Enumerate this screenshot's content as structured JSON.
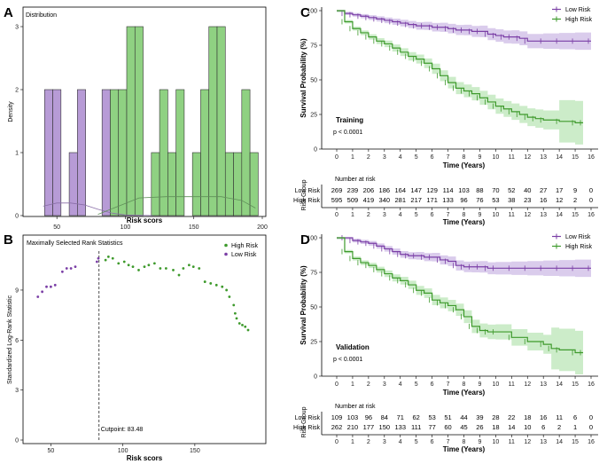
{
  "colors": {
    "low": "#7B3FA6",
    "high": "#3E9A2C",
    "low_fill": "#B79BD6",
    "high_fill": "#8FD182",
    "low_band": "rgba(150,110,200,0.35)",
    "high_band": "rgba(110,200,100,0.35)"
  },
  "panel_letters": {
    "a": "A",
    "b": "B",
    "c": "C",
    "d": "D"
  },
  "chart_data": [
    {
      "id": "A",
      "type": "bar",
      "title": "Distribution",
      "xlabel": "Risk scors",
      "ylabel": "Density",
      "xlim": [
        35,
        200
      ],
      "ylim": [
        0,
        3
      ],
      "xticks": [
        50,
        100,
        150,
        200
      ],
      "yticks": [
        0,
        1,
        2,
        3
      ],
      "bin_width": 6,
      "bars": [
        {
          "x0": 41,
          "v": 2,
          "g": "low"
        },
        {
          "x0": 47,
          "v": 2,
          "g": "low"
        },
        {
          "x0": 59,
          "v": 1,
          "g": "low"
        },
        {
          "x0": 65,
          "v": 2,
          "g": "low"
        },
        {
          "x0": 83,
          "v": 2,
          "g": "low"
        },
        {
          "x0": 89,
          "v": 2,
          "g": "high"
        },
        {
          "x0": 95,
          "v": 2,
          "g": "high"
        },
        {
          "x0": 101,
          "v": 3,
          "g": "high"
        },
        {
          "x0": 107,
          "v": 3,
          "g": "high"
        },
        {
          "x0": 119,
          "v": 1,
          "g": "high"
        },
        {
          "x0": 125,
          "v": 2,
          "g": "high"
        },
        {
          "x0": 131,
          "v": 1,
          "g": "high"
        },
        {
          "x0": 137,
          "v": 2,
          "g": "high"
        },
        {
          "x0": 149,
          "v": 1,
          "g": "high"
        },
        {
          "x0": 155,
          "v": 2,
          "g": "high"
        },
        {
          "x0": 161,
          "v": 3,
          "g": "high"
        },
        {
          "x0": 167,
          "v": 3,
          "g": "high"
        },
        {
          "x0": 173,
          "v": 1,
          "g": "high"
        },
        {
          "x0": 179,
          "v": 1,
          "g": "high"
        },
        {
          "x0": 185,
          "v": 2,
          "g": "high"
        },
        {
          "x0": 191,
          "v": 1,
          "g": "high"
        }
      ],
      "density_low": [
        [
          40,
          0.15
        ],
        [
          50,
          0.2
        ],
        [
          60,
          0.2
        ],
        [
          70,
          0.17
        ],
        [
          80,
          0.1
        ],
        [
          90,
          0.04
        ],
        [
          100,
          0.01
        ],
        [
          120,
          0.0
        ]
      ],
      "density_high": [
        [
          80,
          0.02
        ],
        [
          95,
          0.15
        ],
        [
          110,
          0.28
        ],
        [
          130,
          0.3
        ],
        [
          150,
          0.3
        ],
        [
          170,
          0.3
        ],
        [
          185,
          0.24
        ],
        [
          195,
          0.12
        ]
      ]
    },
    {
      "id": "B",
      "type": "scatter",
      "title": "Maximally Selected Rank Statistics",
      "xlabel": "Risk scors",
      "ylabel": "Standardized Log-Rank Statistic",
      "xlim": [
        35,
        195
      ],
      "ylim": [
        0,
        11.5
      ],
      "xticks": [
        50,
        100,
        150
      ],
      "yticks": [
        0,
        3,
        6,
        9
      ],
      "legend": [
        "High Risk",
        "Low Risk"
      ],
      "cutpoint": 83.48,
      "cutpoint_label": "Cutpoint: 83.48",
      "series": [
        {
          "name": "Low Risk",
          "points": [
            [
              41,
              8.6
            ],
            [
              44,
              8.9
            ],
            [
              47,
              9.2
            ],
            [
              50,
              9.2
            ],
            [
              53,
              9.3
            ],
            [
              58,
              10.1
            ],
            [
              61,
              10.3
            ],
            [
              64,
              10.3
            ],
            [
              67,
              10.4
            ],
            [
              82,
              10.7
            ],
            [
              83,
              10.9
            ]
          ]
        },
        {
          "name": "High Risk",
          "points": [
            [
              88,
              10.8
            ],
            [
              90,
              11.0
            ],
            [
              93,
              10.9
            ],
            [
              97,
              10.6
            ],
            [
              101,
              10.7
            ],
            [
              104,
              10.5
            ],
            [
              107,
              10.4
            ],
            [
              111,
              10.2
            ],
            [
              115,
              10.4
            ],
            [
              118,
              10.5
            ],
            [
              122,
              10.6
            ],
            [
              126,
              10.3
            ],
            [
              130,
              10.3
            ],
            [
              135,
              10.2
            ],
            [
              139,
              9.9
            ],
            [
              142,
              10.3
            ],
            [
              146,
              10.5
            ],
            [
              149,
              10.4
            ],
            [
              153,
              10.3
            ],
            [
              157,
              9.5
            ],
            [
              161,
              9.4
            ],
            [
              165,
              9.3
            ],
            [
              169,
              9.2
            ],
            [
              172,
              9.0
            ],
            [
              174,
              8.6
            ],
            [
              177,
              8.1
            ],
            [
              178,
              7.6
            ],
            [
              179,
              7.3
            ],
            [
              181,
              7.0
            ],
            [
              183,
              6.9
            ],
            [
              185,
              6.8
            ],
            [
              187,
              6.6
            ]
          ]
        }
      ]
    },
    {
      "id": "C",
      "type": "line",
      "xlabel": "Time (Years)",
      "ylabel": "Survival Probability (%)",
      "xlim": [
        0,
        16
      ],
      "ylim": [
        0,
        100
      ],
      "xticks": [
        0,
        1,
        2,
        3,
        4,
        5,
        6,
        7,
        8,
        9,
        10,
        11,
        12,
        13,
        14,
        15,
        16
      ],
      "yticks": [
        0,
        25,
        50,
        75,
        100
      ],
      "legend": [
        "Low Risk",
        "High Risk"
      ],
      "annotation": "Training",
      "pvalue": "p < 0.0001",
      "series": [
        {
          "name": "Low Risk",
          "x": [
            0,
            0.5,
            1,
            1.5,
            2,
            2.5,
            3,
            3.5,
            4,
            4.5,
            5,
            5.5,
            6,
            6.5,
            7,
            7.5,
            8,
            8.5,
            9,
            9.5,
            10,
            10.5,
            11,
            11.5,
            12,
            13,
            14,
            15,
            16
          ],
          "y": [
            100,
            98,
            97,
            96,
            95,
            94,
            93,
            92,
            91,
            90,
            89,
            89,
            88,
            88,
            87,
            86,
            86,
            85,
            85,
            83,
            82,
            81,
            81,
            80,
            78,
            78,
            78,
            78,
            78
          ]
        },
        {
          "name": "High Risk",
          "x": [
            0,
            0.5,
            1,
            1.5,
            2,
            2.5,
            3,
            3.5,
            4,
            4.5,
            5,
            5.5,
            6,
            6.5,
            7,
            7.5,
            8,
            8.5,
            9,
            9.5,
            10,
            10.5,
            11,
            11.5,
            12,
            12.5,
            13,
            14,
            15,
            15.5
          ],
          "y": [
            100,
            92,
            87,
            84,
            81,
            78,
            76,
            73,
            70,
            67,
            65,
            62,
            58,
            53,
            48,
            44,
            42,
            40,
            37,
            34,
            31,
            29,
            27,
            25,
            23,
            22,
            21,
            20,
            19,
            19
          ]
        }
      ],
      "risk_table": {
        "title": "Number at risk",
        "ylabel": "Risk Group",
        "xlabel": "Time (Years)",
        "rows": [
          {
            "label": "Low Risk",
            "values": [
              "269",
              "239",
              "206",
              "186",
              "164",
              "147",
              "129",
              "114",
              "103",
              "88",
              "70",
              "52",
              "40",
              "27",
              "17",
              "9",
              "0"
            ]
          },
          {
            "label": "High Risk",
            "values": [
              "595",
              "509",
              "419",
              "340",
              "281",
              "217",
              "171",
              "133",
              "96",
              "76",
              "53",
              "38",
              "23",
              "16",
              "12",
              "2",
              "0"
            ]
          }
        ]
      }
    },
    {
      "id": "D",
      "type": "line",
      "xlabel": "Time (Years)",
      "ylabel": "Survival Probability (%)",
      "xlim": [
        0,
        16
      ],
      "ylim": [
        0,
        100
      ],
      "xticks": [
        0,
        1,
        2,
        3,
        4,
        5,
        6,
        7,
        8,
        9,
        10,
        11,
        12,
        13,
        14,
        15,
        16
      ],
      "yticks": [
        0,
        25,
        50,
        75,
        100
      ],
      "legend": [
        "Low Risk",
        "High Risk"
      ],
      "annotation": "Validation",
      "pvalue": "p < 0.0001",
      "series": [
        {
          "name": "Low Risk",
          "x": [
            0,
            0.5,
            1,
            1.5,
            2,
            2.5,
            3,
            3.5,
            4,
            4.5,
            5,
            5.5,
            6,
            6.5,
            7,
            7.5,
            8,
            8.5,
            9,
            9.5,
            10,
            11,
            12,
            13,
            14,
            15,
            16
          ],
          "y": [
            100,
            100,
            98,
            97,
            96,
            94,
            92,
            90,
            88,
            87,
            87,
            86,
            86,
            84,
            83,
            80,
            79,
            79,
            79,
            78,
            78,
            78,
            78,
            78,
            78,
            78,
            78
          ]
        },
        {
          "name": "High Risk",
          "x": [
            0,
            0.5,
            1,
            1.5,
            2,
            2.5,
            3,
            3.5,
            4,
            4.5,
            5,
            5.5,
            6,
            6.5,
            7,
            7.5,
            8,
            8.5,
            9,
            9.5,
            10,
            11,
            12,
            13,
            13.5,
            14,
            15,
            15.5
          ],
          "y": [
            100,
            90,
            85,
            82,
            80,
            77,
            74,
            71,
            69,
            66,
            62,
            60,
            55,
            53,
            51,
            48,
            43,
            36,
            33,
            32,
            32,
            28,
            25,
            23,
            20,
            19,
            17,
            17
          ]
        }
      ],
      "risk_table": {
        "title": "Number at risk",
        "ylabel": "Risk Group",
        "xlabel": "Time (Years)",
        "rows": [
          {
            "label": "Low Risk",
            "values": [
              "109",
              "103",
              "96",
              "84",
              "71",
              "62",
              "53",
              "51",
              "44",
              "39",
              "28",
              "22",
              "18",
              "16",
              "11",
              "6",
              "0"
            ]
          },
          {
            "label": "High Risk",
            "values": [
              "262",
              "210",
              "177",
              "150",
              "133",
              "111",
              "77",
              "60",
              "45",
              "26",
              "18",
              "14",
              "10",
              "6",
              "2",
              "1",
              "0"
            ]
          }
        ]
      }
    }
  ]
}
